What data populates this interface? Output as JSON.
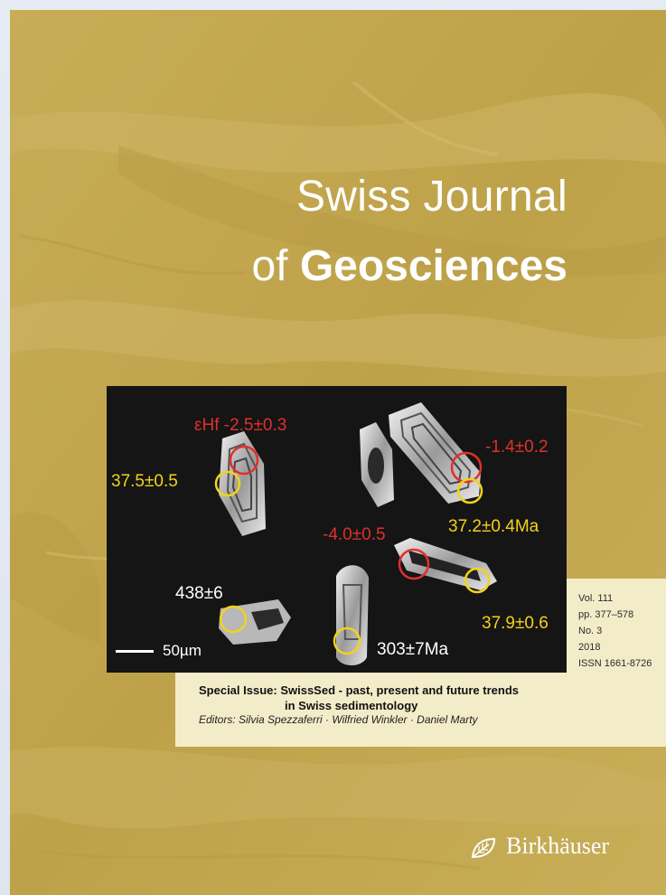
{
  "journal": {
    "title_line1": "Swiss Journal",
    "title_line2_prefix": "of ",
    "title_line2_bold": "Geosciences"
  },
  "micrograph": {
    "labels": [
      {
        "text": "εHf -2.5±0.3",
        "color": "#e0302b"
      },
      {
        "text": "-1.4±0.2",
        "color": "#e0302b"
      },
      {
        "text": "37.5±0.5",
        "color": "#f3d21a"
      },
      {
        "text": "37.2±0.4Ma",
        "color": "#f3d21a"
      },
      {
        "text": "-4.0±0.5",
        "color": "#e0302b"
      },
      {
        "text": "438±6",
        "color": "#ffffff"
      },
      {
        "text": "37.9±0.6",
        "color": "#f3d21a"
      },
      {
        "text": "303±7Ma",
        "color": "#ffffff"
      }
    ],
    "scale_label": "50µm"
  },
  "issue_info": {
    "volume": "Vol. 111",
    "pages": "pp. 377–578",
    "number": "No. 3",
    "year": "2018",
    "issn": "ISSN 1661-8726"
  },
  "special_issue": {
    "title_line1": "Special Issue: SwissSed - past, present and future trends",
    "title_line2": "in Swiss sedimentology",
    "editors": "Editors: Silvia Spezzaferri · Wilfried Winkler · Daniel Marty"
  },
  "publisher": {
    "name": "Birkhäuser",
    "icon": "leaf-logo-icon"
  },
  "colors": {
    "cover_background": "#c4aa52",
    "info_panel": "#f3ecc9",
    "micrograph_background": "#151515"
  }
}
